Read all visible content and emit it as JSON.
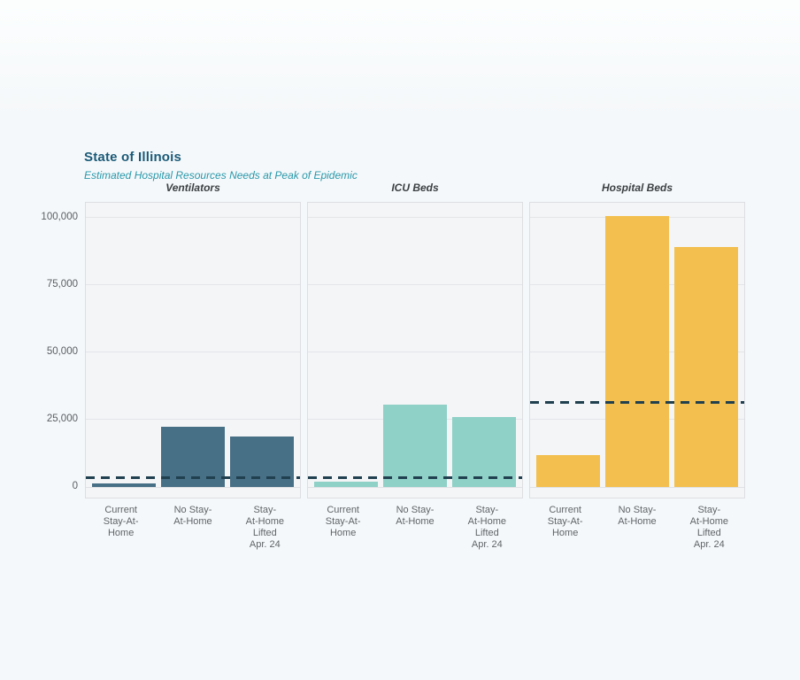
{
  "header": {
    "title": "State of Illinois",
    "subtitle": "Estimated Hospital Resources Needs at Peak of Epidemic",
    "title_color": "#1a5a78",
    "subtitle_color": "#2898aa"
  },
  "chart_data": {
    "type": "bar",
    "title": "State of Illinois",
    "subtitle": "Estimated Hospital Resources Needs at Peak of Epidemic",
    "categories": [
      "Current Stay-At-Home",
      "No Stay-At-Home",
      "Stay-At-Home Lifted Apr. 24"
    ],
    "x_labels": [
      {
        "label": "Current Stay-At-Home",
        "lines": [
          "Current",
          "Stay-At-",
          "Home"
        ]
      },
      {
        "label": "No Stay-At-Home",
        "lines": [
          "No Stay-",
          "At-Home"
        ]
      },
      {
        "label": "Stay-At-Home Lifted Apr. 24",
        "lines": [
          "Stay-",
          "At-Home",
          "Lifted",
          "Apr. 24"
        ]
      }
    ],
    "y_ticks": [
      {
        "value": 0,
        "label": "0"
      },
      {
        "value": 25000,
        "label": "25,000"
      },
      {
        "value": 50000,
        "label": "50,000"
      },
      {
        "value": 75000,
        "label": "75,000"
      },
      {
        "value": 100000,
        "label": "100,000"
      }
    ],
    "ylim": [
      0,
      105600
    ],
    "grid": true,
    "legend": false,
    "capacity_line_color": "#20404f",
    "panels": [
      {
        "title": "Ventilators",
        "bar_color": "#476f85",
        "values": [
          1300,
          22400,
          18800
        ],
        "capacity_line": 3300
      },
      {
        "title": "ICU Beds",
        "bar_color": "#8fd0c7",
        "values": [
          2000,
          30700,
          26000
        ],
        "capacity_line": 3400
      },
      {
        "title": "Hospital Beds",
        "bar_color": "#f3bf4e",
        "values": [
          11800,
          100700,
          89100
        ],
        "capacity_line": 31300
      }
    ]
  }
}
